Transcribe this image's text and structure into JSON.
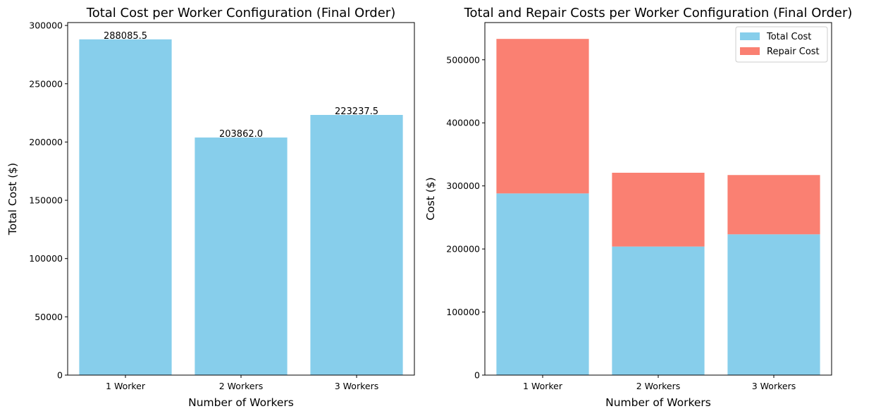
{
  "chart_data": [
    {
      "type": "bar",
      "title": "Total Cost per Worker Configuration (Final Order)",
      "xlabel": "Number of Workers",
      "ylabel": "Total Cost ($)",
      "categories": [
        "1 Worker",
        "2 Workers",
        "3 Workers"
      ],
      "values": [
        288085.5,
        203862.0,
        223237.5
      ],
      "data_labels": [
        "288085.5",
        "203862.0",
        "223237.5"
      ],
      "ylim": [
        0,
        302490
      ],
      "yticks": [
        0,
        50000,
        100000,
        150000,
        200000,
        250000,
        300000
      ],
      "bar_color": "#87ceeb",
      "grid": false
    },
    {
      "type": "bar",
      "stacked": true,
      "title": "Total and Repair Costs per Worker Configuration (Final Order)",
      "xlabel": "Number of Workers",
      "ylabel": "Cost ($)",
      "categories": [
        "1 Worker",
        "2 Workers",
        "3 Workers"
      ],
      "series": [
        {
          "name": "Total Cost",
          "values": [
            288085.5,
            203862.0,
            223237.5
          ],
          "color": "#87ceeb"
        },
        {
          "name": "Repair Cost",
          "values": [
            245000,
            117000,
            94000
          ],
          "color": "#fa8072"
        }
      ],
      "ylim": [
        0,
        559000
      ],
      "yticks": [
        0,
        100000,
        200000,
        300000,
        400000,
        500000
      ],
      "legend": "top-right",
      "grid": false
    }
  ]
}
